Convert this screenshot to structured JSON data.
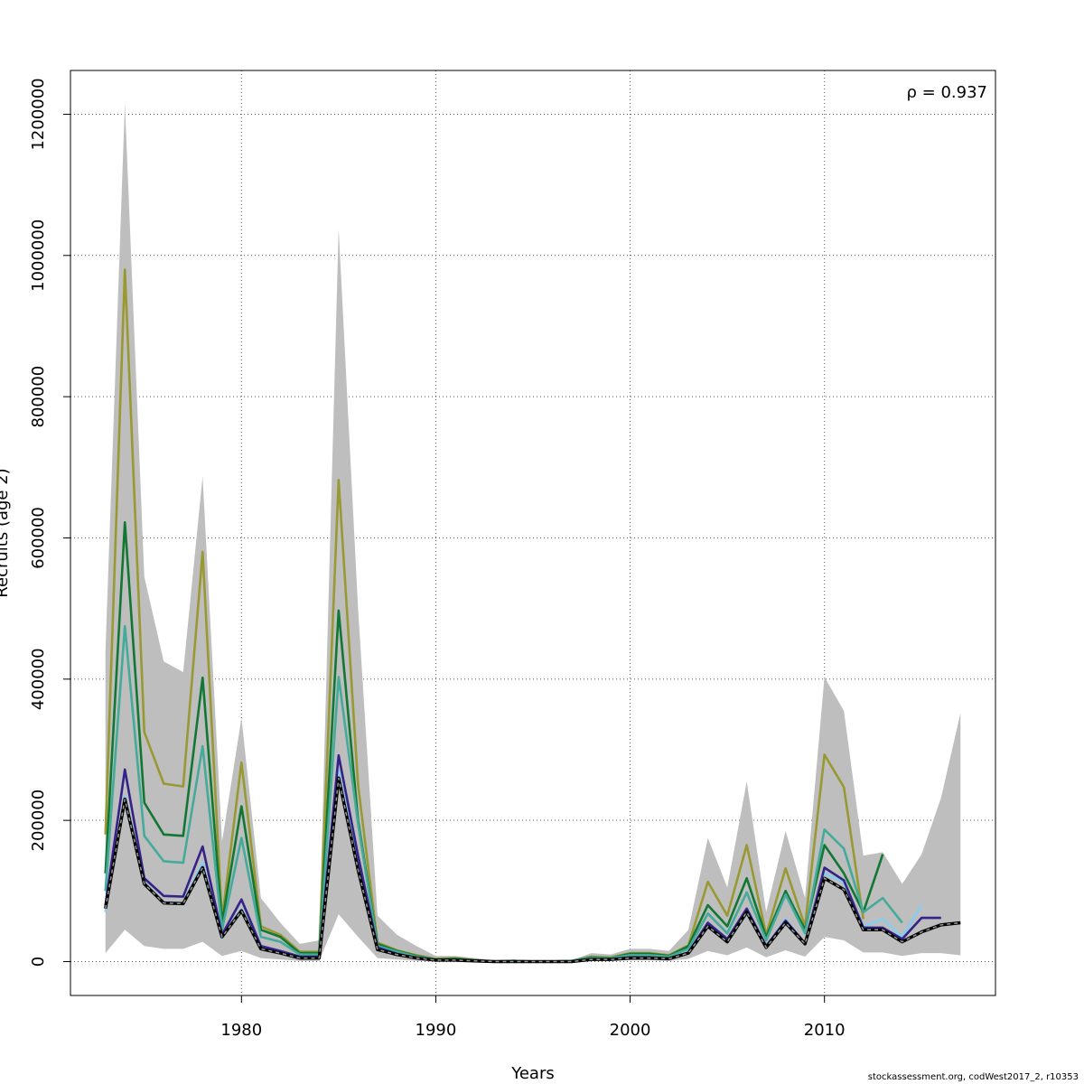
{
  "chart_data": {
    "type": "line",
    "title": "",
    "xlabel": "Years",
    "ylabel": "Recruits (age 2)",
    "annotation": "ρ = 0.937",
    "xlim": [
      1971.2,
      2018.8
    ],
    "ylim": [
      -48000,
      1262000
    ],
    "x_ticks": [
      1980,
      1990,
      2000,
      2010
    ],
    "y_ticks": [
      0,
      200000,
      400000,
      600000,
      800000,
      1000000,
      1200000
    ],
    "grid": true,
    "band_color": "#bebebe",
    "band": {
      "x_start": 1973,
      "upper": [
        440000,
        1215000,
        545000,
        425000,
        410000,
        687000,
        170000,
        345000,
        90000,
        55000,
        25000,
        30000,
        1038000,
        500000,
        65000,
        38000,
        22000,
        8000,
        8000,
        5000,
        2000,
        3000,
        1000,
        1000,
        2000,
        12000,
        10000,
        18000,
        18000,
        15000,
        45000,
        175000,
        105000,
        255000,
        70000,
        185000,
        90000,
        403000,
        355000,
        150000,
        155000,
        110000,
        152000,
        232000,
        352000
      ],
      "lower": [
        12000,
        45000,
        22000,
        18000,
        18000,
        28000,
        8000,
        15000,
        5000,
        3000,
        1000,
        1000,
        67000,
        35000,
        5000,
        3000,
        1000,
        0,
        0,
        0,
        0,
        0,
        0,
        0,
        0,
        1000,
        1000,
        2000,
        2000,
        1000,
        4000,
        15000,
        9000,
        20000,
        6000,
        16000,
        7000,
        35000,
        30000,
        13000,
        13000,
        8000,
        12000,
        12000,
        9000
      ]
    },
    "series": [
      {
        "color": "#999933",
        "x_start": 1973,
        "values": [
          180000,
          980000,
          325000,
          252000,
          248000,
          580000,
          60000,
          282000,
          50000,
          38000,
          14000,
          14000,
          682000,
          250000,
          27000,
          16000,
          9000,
          4000,
          5000,
          2000,
          0,
          1000,
          0,
          0,
          1000,
          7000,
          6000,
          12000,
          12000,
          9000,
          23000,
          113000,
          65000,
          165000,
          38000,
          132000,
          50000,
          293000,
          247000,
          60000
        ]
      },
      {
        "color": "#117733",
        "x_start": 1973,
        "values": [
          125000,
          622000,
          225000,
          180000,
          178000,
          402000,
          55000,
          220000,
          45000,
          35000,
          12000,
          12000,
          497000,
          200000,
          25000,
          15000,
          8000,
          3000,
          4000,
          2000,
          0,
          1000,
          0,
          0,
          1000,
          6000,
          5000,
          11000,
          11000,
          8000,
          22000,
          80000,
          50000,
          118000,
          35000,
          100000,
          45000,
          165000,
          125000,
          70000,
          152000
        ]
      },
      {
        "color": "#44AA99",
        "x_start": 1973,
        "values": [
          100000,
          475000,
          178000,
          142000,
          140000,
          305000,
          45000,
          175000,
          35000,
          28000,
          10000,
          10000,
          403000,
          195000,
          22000,
          14000,
          7000,
          3000,
          3000,
          1000,
          0,
          1000,
          0,
          0,
          1000,
          5000,
          5000,
          9000,
          9000,
          7000,
          18000,
          68000,
          40000,
          98000,
          30000,
          95000,
          40000,
          187000,
          160000,
          70000,
          90000,
          55000
        ]
      },
      {
        "color": "#88CCEE",
        "x_start": 1973,
        "values": [
          70000,
          235000,
          112000,
          84000,
          83000,
          140000,
          33000,
          75000,
          19000,
          13000,
          6000,
          6000,
          270000,
          135000,
          17000,
          10000,
          5000,
          2000,
          2000,
          1000,
          0,
          0,
          0,
          0,
          0,
          3000,
          3000,
          5000,
          5000,
          4000,
          12000,
          52000,
          30000,
          72000,
          21000,
          60000,
          25000,
          125000,
          112000,
          50000,
          60000,
          35000,
          80000
        ]
      },
      {
        "color": "#332288",
        "x_start": 1973,
        "values": [
          80000,
          272000,
          118000,
          93000,
          92000,
          163000,
          38000,
          88000,
          22000,
          15000,
          7000,
          7000,
          292000,
          150000,
          20000,
          11000,
          5000,
          2000,
          2000,
          1000,
          0,
          0,
          0,
          0,
          0,
          3000,
          3000,
          6000,
          6000,
          4000,
          13000,
          55000,
          32000,
          75000,
          22000,
          58000,
          26000,
          133000,
          115000,
          48000,
          48000,
          32000,
          62000,
          62000
        ]
      },
      {
        "color": "#000000",
        "dashed": true,
        "x_start": 1973,
        "values": [
          75000,
          230000,
          110000,
          83000,
          82000,
          133000,
          35000,
          72000,
          18000,
          12000,
          5000,
          5000,
          260000,
          130000,
          17000,
          10000,
          5000,
          2000,
          2000,
          1000,
          0,
          0,
          0,
          0,
          0,
          3000,
          3000,
          5000,
          5000,
          4000,
          12000,
          50000,
          28000,
          70000,
          20000,
          55000,
          25000,
          118000,
          102000,
          45000,
          45000,
          28000,
          42000,
          52000,
          55000
        ]
      }
    ]
  },
  "footer": "stockassessment.org, codWest2017_2, r10353"
}
